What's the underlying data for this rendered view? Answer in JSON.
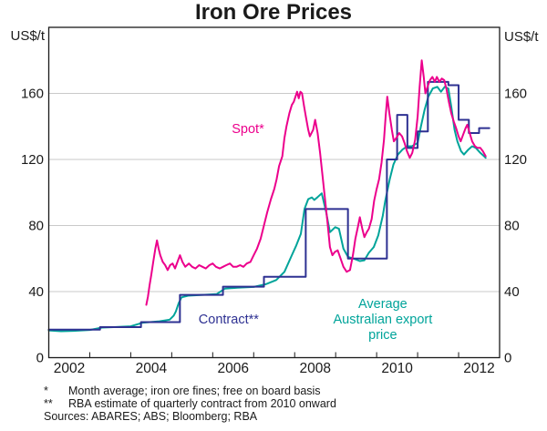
{
  "title": "Iron Ore Prices",
  "y_axis_unit_left": "US$/t",
  "y_axis_unit_right": "US$/t",
  "footnotes": [
    {
      "symbol": "*",
      "text": "Month average; iron ore fines; free on board basis"
    },
    {
      "symbol": "**",
      "text": "RBA estimate of quarterly contract from 2010 onward"
    }
  ],
  "sources_line": "Sources: ABARES; ABS; Bloomberg; RBA",
  "chart_data": {
    "type": "line",
    "title": "Iron Ore Prices",
    "ylabel": "US$/t",
    "x_range": [
      2002,
      2013
    ],
    "y_range": [
      0,
      200
    ],
    "grid": true,
    "y_gridlines": [
      40,
      80,
      120,
      160
    ],
    "y_tick_labels": [
      {
        "value": 0,
        "label": "0"
      },
      {
        "value": 40,
        "label": "40"
      },
      {
        "value": 80,
        "label": "80"
      },
      {
        "value": 120,
        "label": "120"
      },
      {
        "value": 160,
        "label": "160"
      }
    ],
    "x_year_ticks": [
      2003,
      2004,
      2005,
      2006,
      2007,
      2008,
      2009,
      2010,
      2011,
      2012
    ],
    "x_year_labels": [
      {
        "label": "2002",
        "center": 2002.5
      },
      {
        "label": "2004",
        "center": 2004.5
      },
      {
        "label": "2006",
        "center": 2006.5
      },
      {
        "label": "2008",
        "center": 2008.5
      },
      {
        "label": "2010",
        "center": 2010.5
      },
      {
        "label": "2012",
        "center": 2012.5
      }
    ],
    "legend_position": "inline-annotations",
    "annotations": [
      {
        "text": "Spot*",
        "x": 2006.86,
        "y": 136,
        "color": "#ec008c"
      },
      {
        "text": "Contract**",
        "x": 2006.39,
        "y": 20.7,
        "color": "#2e3192"
      },
      {
        "text": "Average\nAustralian export\nprice",
        "x": 2010.15,
        "y": 30.1,
        "color": "#00a49a"
      }
    ],
    "series": [
      {
        "name": "Average Australian export price",
        "color": "#00a49a",
        "style": "line",
        "points": [
          [
            2002.0,
            16.5
          ],
          [
            2002.3,
            16
          ],
          [
            2002.6,
            16.2
          ],
          [
            2003.0,
            16.8
          ],
          [
            2003.3,
            18.2
          ],
          [
            2003.7,
            18.6
          ],
          [
            2004.0,
            19
          ],
          [
            2004.3,
            21.2
          ],
          [
            2004.7,
            22
          ],
          [
            2004.95,
            23
          ],
          [
            2005.05,
            25.5
          ],
          [
            2005.1,
            28
          ],
          [
            2005.17,
            33
          ],
          [
            2005.24,
            36.5
          ],
          [
            2005.4,
            37.5
          ],
          [
            2005.75,
            38
          ],
          [
            2006.1,
            38.5
          ],
          [
            2006.3,
            41.8
          ],
          [
            2006.6,
            42.3
          ],
          [
            2007.0,
            42.8
          ],
          [
            2007.3,
            44.5
          ],
          [
            2007.55,
            47
          ],
          [
            2007.75,
            52
          ],
          [
            2007.93,
            62
          ],
          [
            2008.04,
            68
          ],
          [
            2008.15,
            75
          ],
          [
            2008.24,
            90
          ],
          [
            2008.33,
            96
          ],
          [
            2008.42,
            97
          ],
          [
            2008.48,
            95.5
          ],
          [
            2008.55,
            97
          ],
          [
            2008.66,
            99.5
          ],
          [
            2008.77,
            88
          ],
          [
            2008.86,
            76
          ],
          [
            2008.99,
            79
          ],
          [
            2009.08,
            78
          ],
          [
            2009.19,
            66
          ],
          [
            2009.3,
            61
          ],
          [
            2009.44,
            60
          ],
          [
            2009.59,
            58.5
          ],
          [
            2009.7,
            59
          ],
          [
            2009.81,
            63.5
          ],
          [
            2009.93,
            67
          ],
          [
            2010.04,
            74
          ],
          [
            2010.15,
            86
          ],
          [
            2010.21,
            95
          ],
          [
            2010.32,
            108
          ],
          [
            2010.41,
            117
          ],
          [
            2010.52,
            123
          ],
          [
            2010.63,
            126
          ],
          [
            2010.75,
            128
          ],
          [
            2010.86,
            128
          ],
          [
            2011.0,
            130
          ],
          [
            2011.08,
            140
          ],
          [
            2011.17,
            150
          ],
          [
            2011.26,
            158
          ],
          [
            2011.37,
            163
          ],
          [
            2011.48,
            164
          ],
          [
            2011.57,
            161
          ],
          [
            2011.66,
            164
          ],
          [
            2011.75,
            163
          ],
          [
            2011.82,
            152
          ],
          [
            2011.9,
            138
          ],
          [
            2011.97,
            131
          ],
          [
            2012.06,
            125
          ],
          [
            2012.13,
            123
          ],
          [
            2012.24,
            126
          ],
          [
            2012.33,
            128
          ],
          [
            2012.42,
            127
          ],
          [
            2012.53,
            124
          ],
          [
            2012.62,
            122
          ],
          [
            2012.66,
            121
          ]
        ]
      },
      {
        "name": "Contract",
        "color": "#2e3192",
        "style": "step",
        "end_x": 2012.75,
        "points": [
          [
            2002.0,
            17
          ],
          [
            2003.25,
            18.5
          ],
          [
            2004.25,
            21.5
          ],
          [
            2005.2,
            38
          ],
          [
            2006.25,
            43
          ],
          [
            2007.25,
            49
          ],
          [
            2008.27,
            90
          ],
          [
            2009.3,
            60
          ],
          [
            2010.25,
            120
          ],
          [
            2010.5,
            147
          ],
          [
            2010.75,
            127
          ],
          [
            2011.0,
            137
          ],
          [
            2011.25,
            167
          ],
          [
            2011.75,
            165
          ],
          [
            2012.0,
            144
          ],
          [
            2012.25,
            136
          ],
          [
            2012.5,
            139
          ]
        ]
      },
      {
        "name": "Spot",
        "color": "#ec008c",
        "style": "line",
        "points": [
          [
            2004.38,
            32
          ],
          [
            2004.42,
            37
          ],
          [
            2004.46,
            44
          ],
          [
            2004.5,
            50
          ],
          [
            2004.55,
            58
          ],
          [
            2004.6,
            66
          ],
          [
            2004.64,
            71
          ],
          [
            2004.68,
            66
          ],
          [
            2004.72,
            62
          ],
          [
            2004.78,
            58
          ],
          [
            2004.84,
            56
          ],
          [
            2004.9,
            53
          ],
          [
            2004.96,
            56
          ],
          [
            2005.02,
            57
          ],
          [
            2005.08,
            54
          ],
          [
            2005.14,
            58
          ],
          [
            2005.2,
            62
          ],
          [
            2005.26,
            58
          ],
          [
            2005.33,
            55
          ],
          [
            2005.42,
            57
          ],
          [
            2005.5,
            55
          ],
          [
            2005.58,
            54
          ],
          [
            2005.67,
            56
          ],
          [
            2005.75,
            55
          ],
          [
            2005.83,
            54
          ],
          [
            2005.92,
            56
          ],
          [
            2006.0,
            57
          ],
          [
            2006.08,
            55
          ],
          [
            2006.17,
            54
          ],
          [
            2006.25,
            55
          ],
          [
            2006.33,
            56
          ],
          [
            2006.42,
            57
          ],
          [
            2006.5,
            55
          ],
          [
            2006.58,
            55
          ],
          [
            2006.67,
            56
          ],
          [
            2006.75,
            55
          ],
          [
            2006.83,
            57
          ],
          [
            2006.92,
            58
          ],
          [
            2007.0,
            62
          ],
          [
            2007.08,
            66
          ],
          [
            2007.17,
            72
          ],
          [
            2007.25,
            80
          ],
          [
            2007.33,
            88
          ],
          [
            2007.42,
            96
          ],
          [
            2007.5,
            102
          ],
          [
            2007.56,
            108
          ],
          [
            2007.62,
            116
          ],
          [
            2007.7,
            122
          ],
          [
            2007.75,
            133
          ],
          [
            2007.8,
            140
          ],
          [
            2007.87,
            148
          ],
          [
            2007.93,
            153
          ],
          [
            2007.98,
            155
          ],
          [
            2008.02,
            158
          ],
          [
            2008.06,
            161
          ],
          [
            2008.1,
            157
          ],
          [
            2008.14,
            161
          ],
          [
            2008.18,
            160
          ],
          [
            2008.23,
            152
          ],
          [
            2008.28,
            145
          ],
          [
            2008.33,
            138
          ],
          [
            2008.37,
            134
          ],
          [
            2008.45,
            138
          ],
          [
            2008.5,
            144
          ],
          [
            2008.56,
            136
          ],
          [
            2008.62,
            124
          ],
          [
            2008.68,
            110
          ],
          [
            2008.74,
            96
          ],
          [
            2008.8,
            82
          ],
          [
            2008.86,
            67
          ],
          [
            2008.92,
            62
          ],
          [
            2008.98,
            64
          ],
          [
            2009.05,
            65
          ],
          [
            2009.12,
            60
          ],
          [
            2009.19,
            55
          ],
          [
            2009.27,
            52
          ],
          [
            2009.35,
            53
          ],
          [
            2009.42,
            62
          ],
          [
            2009.48,
            72
          ],
          [
            2009.55,
            80
          ],
          [
            2009.59,
            85
          ],
          [
            2009.65,
            78
          ],
          [
            2009.7,
            73
          ],
          [
            2009.76,
            76
          ],
          [
            2009.81,
            78
          ],
          [
            2009.88,
            84
          ],
          [
            2009.94,
            95
          ],
          [
            2010.0,
            102
          ],
          [
            2010.06,
            108
          ],
          [
            2010.12,
            118
          ],
          [
            2010.18,
            132
          ],
          [
            2010.22,
            146
          ],
          [
            2010.26,
            158
          ],
          [
            2010.31,
            148
          ],
          [
            2010.37,
            138
          ],
          [
            2010.42,
            131
          ],
          [
            2010.48,
            133
          ],
          [
            2010.55,
            136
          ],
          [
            2010.62,
            134
          ],
          [
            2010.68,
            130
          ],
          [
            2010.74,
            125
          ],
          [
            2010.81,
            121
          ],
          [
            2010.87,
            124
          ],
          [
            2010.94,
            132
          ],
          [
            2011.0,
            146
          ],
          [
            2011.05,
            164
          ],
          [
            2011.1,
            180
          ],
          [
            2011.15,
            170
          ],
          [
            2011.19,
            160
          ],
          [
            2011.24,
            164
          ],
          [
            2011.3,
            168
          ],
          [
            2011.36,
            170
          ],
          [
            2011.42,
            167
          ],
          [
            2011.47,
            170
          ],
          [
            2011.53,
            167
          ],
          [
            2011.59,
            169
          ],
          [
            2011.65,
            168
          ],
          [
            2011.7,
            163
          ],
          [
            2011.76,
            155
          ],
          [
            2011.82,
            148
          ],
          [
            2011.88,
            143
          ],
          [
            2011.94,
            139
          ],
          [
            2012.0,
            134
          ],
          [
            2012.05,
            131
          ],
          [
            2012.11,
            135
          ],
          [
            2012.17,
            139
          ],
          [
            2012.21,
            141
          ],
          [
            2012.27,
            136
          ],
          [
            2012.33,
            131
          ],
          [
            2012.4,
            128
          ],
          [
            2012.46,
            127
          ],
          [
            2012.53,
            127
          ],
          [
            2012.59,
            125
          ],
          [
            2012.66,
            122
          ]
        ]
      }
    ]
  }
}
